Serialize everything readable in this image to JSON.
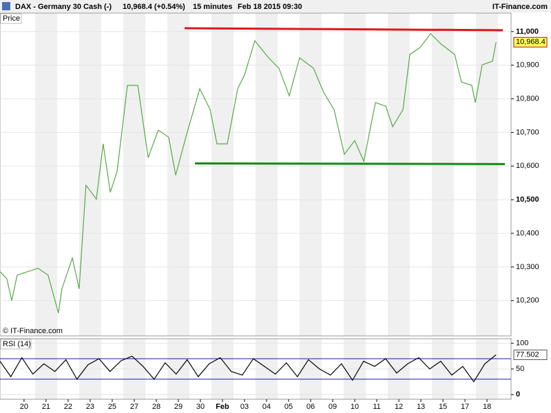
{
  "header": {
    "symbol": "DAX - Germany 30 Cash (-)",
    "quote": "10,968.4 (+0.54%)",
    "interval": "15 minutes",
    "timestamp": "Feb 18 2015 09:30",
    "brand": "IT-Finance.com"
  },
  "chart_data": [
    {
      "type": "line",
      "title": "Price",
      "watermark": "© IT-Finance.com",
      "x": [
        -1.09,
        -0.78,
        -0.56,
        -0.31,
        0.16,
        0.63,
        1.09,
        1.56,
        1.72,
        2.19,
        2.5,
        2.81,
        3.28,
        3.59,
        3.91,
        4.22,
        4.69,
        5.16,
        5.63,
        6.09,
        6.56,
        6.88,
        7.34,
        7.97,
        8.44,
        8.75,
        9.22,
        9.69,
        10,
        10.47,
        11.09,
        11.56,
        12.03,
        12.5,
        13.13,
        13.59,
        14.06,
        14.53,
        15,
        15.41,
        15.94,
        16.41,
        16.72,
        17.19,
        17.5,
        17.97,
        18.44,
        18.91,
        19.53,
        19.84,
        20.31,
        20.47,
        20.78,
        21.25,
        21.41
      ],
      "series": [
        {
          "name": "DAX",
          "color": "#55a844",
          "values": [
            10286,
            10265,
            10200,
            10276,
            10286,
            10296,
            10276,
            10163,
            10235,
            10327,
            10235,
            10543,
            10502,
            10666,
            10522,
            10584,
            10840,
            10840,
            10625,
            10707,
            10686,
            10573,
            10686,
            10830,
            10768,
            10666,
            10666,
            10830,
            10871,
            10973,
            10922,
            10891,
            10809,
            10922,
            10891,
            10819,
            10768,
            10635,
            10676,
            10614,
            10789,
            10778,
            10717,
            10768,
            10932,
            10953,
            10994,
            10963,
            10932,
            10850,
            10840,
            10789,
            10901,
            10912,
            10968.4
          ]
        }
      ],
      "last": {
        "value": 10968.4,
        "label": "10,968.4"
      },
      "lines": [
        {
          "color": "#e0161b",
          "x": [
            7.28,
            21.72
          ],
          "y": [
            11010,
            11004
          ]
        },
        {
          "color": "#138a13",
          "x": [
            7.75,
            21.81
          ],
          "y": [
            10608,
            10606
          ]
        }
      ],
      "xlim": [
        -1.09,
        22.09
      ],
      "ylim": [
        10095,
        11055
      ],
      "yticks": [
        {
          "value": 10200,
          "label": "10,200"
        },
        {
          "value": 10300,
          "label": "10,300"
        },
        {
          "value": 10400,
          "label": "10,400"
        },
        {
          "value": 10500,
          "label": "10,500"
        },
        {
          "value": 10600,
          "label": "10,600"
        },
        {
          "value": 10700,
          "label": "10,700"
        },
        {
          "value": 10800,
          "label": "10,800"
        },
        {
          "value": 10900,
          "label": "10,900"
        },
        {
          "value": 11000,
          "label": "11,000"
        }
      ],
      "xticks": [
        {
          "value": 0,
          "label": "20"
        },
        {
          "value": 1,
          "label": "21"
        },
        {
          "value": 2,
          "label": "22"
        },
        {
          "value": 3,
          "label": "23"
        },
        {
          "value": 4,
          "label": "25"
        },
        {
          "value": 5,
          "label": "27"
        },
        {
          "value": 6,
          "label": "28"
        },
        {
          "value": 7,
          "label": "29"
        },
        {
          "value": 8,
          "label": "30"
        },
        {
          "value": 9,
          "label": "Feb"
        },
        {
          "value": 10,
          "label": "03"
        },
        {
          "value": 11,
          "label": "04"
        },
        {
          "value": 12,
          "label": "05"
        },
        {
          "value": 13,
          "label": "06"
        },
        {
          "value": 14,
          "label": "09"
        },
        {
          "value": 15,
          "label": "10"
        },
        {
          "value": 16,
          "label": "11"
        },
        {
          "value": 17,
          "label": "12"
        },
        {
          "value": 18,
          "label": "13"
        },
        {
          "value": 19,
          "label": "15"
        },
        {
          "value": 20,
          "label": "17"
        },
        {
          "value": 21,
          "label": "18"
        }
      ]
    },
    {
      "type": "line",
      "title": "RSI (14)",
      "x": [
        -1.09,
        -0.6,
        -0.1,
        0.4,
        0.9,
        1.4,
        1.9,
        2.4,
        2.9,
        3.4,
        3.9,
        4.4,
        4.9,
        5.4,
        5.9,
        6.4,
        6.9,
        7.4,
        7.9,
        8.4,
        8.9,
        9.4,
        9.9,
        10.4,
        10.9,
        11.4,
        11.9,
        12.4,
        12.9,
        13.4,
        13.9,
        14.4,
        14.9,
        15.4,
        15.9,
        16.4,
        16.9,
        17.4,
        17.9,
        18.4,
        18.9,
        19.4,
        19.9,
        20.4,
        20.9,
        21.41
      ],
      "series": [
        {
          "name": "RSI",
          "color": "#000000",
          "values": [
            65,
            35,
            72,
            40,
            60,
            45,
            68,
            30,
            58,
            70,
            45,
            66,
            75,
            55,
            30,
            62,
            40,
            68,
            35,
            60,
            72,
            45,
            38,
            70,
            55,
            40,
            62,
            35,
            68,
            50,
            38,
            60,
            28,
            65,
            55,
            70,
            42,
            60,
            72,
            50,
            65,
            38,
            55,
            25,
            60,
            77.502
          ]
        }
      ],
      "last": {
        "value": 77.502,
        "label": "77.502"
      },
      "levels": [
        70,
        30
      ],
      "xlim": [
        -1.09,
        22.09
      ],
      "ylim": [
        -9,
        109
      ],
      "yticks": [
        0,
        50,
        100
      ]
    }
  ]
}
